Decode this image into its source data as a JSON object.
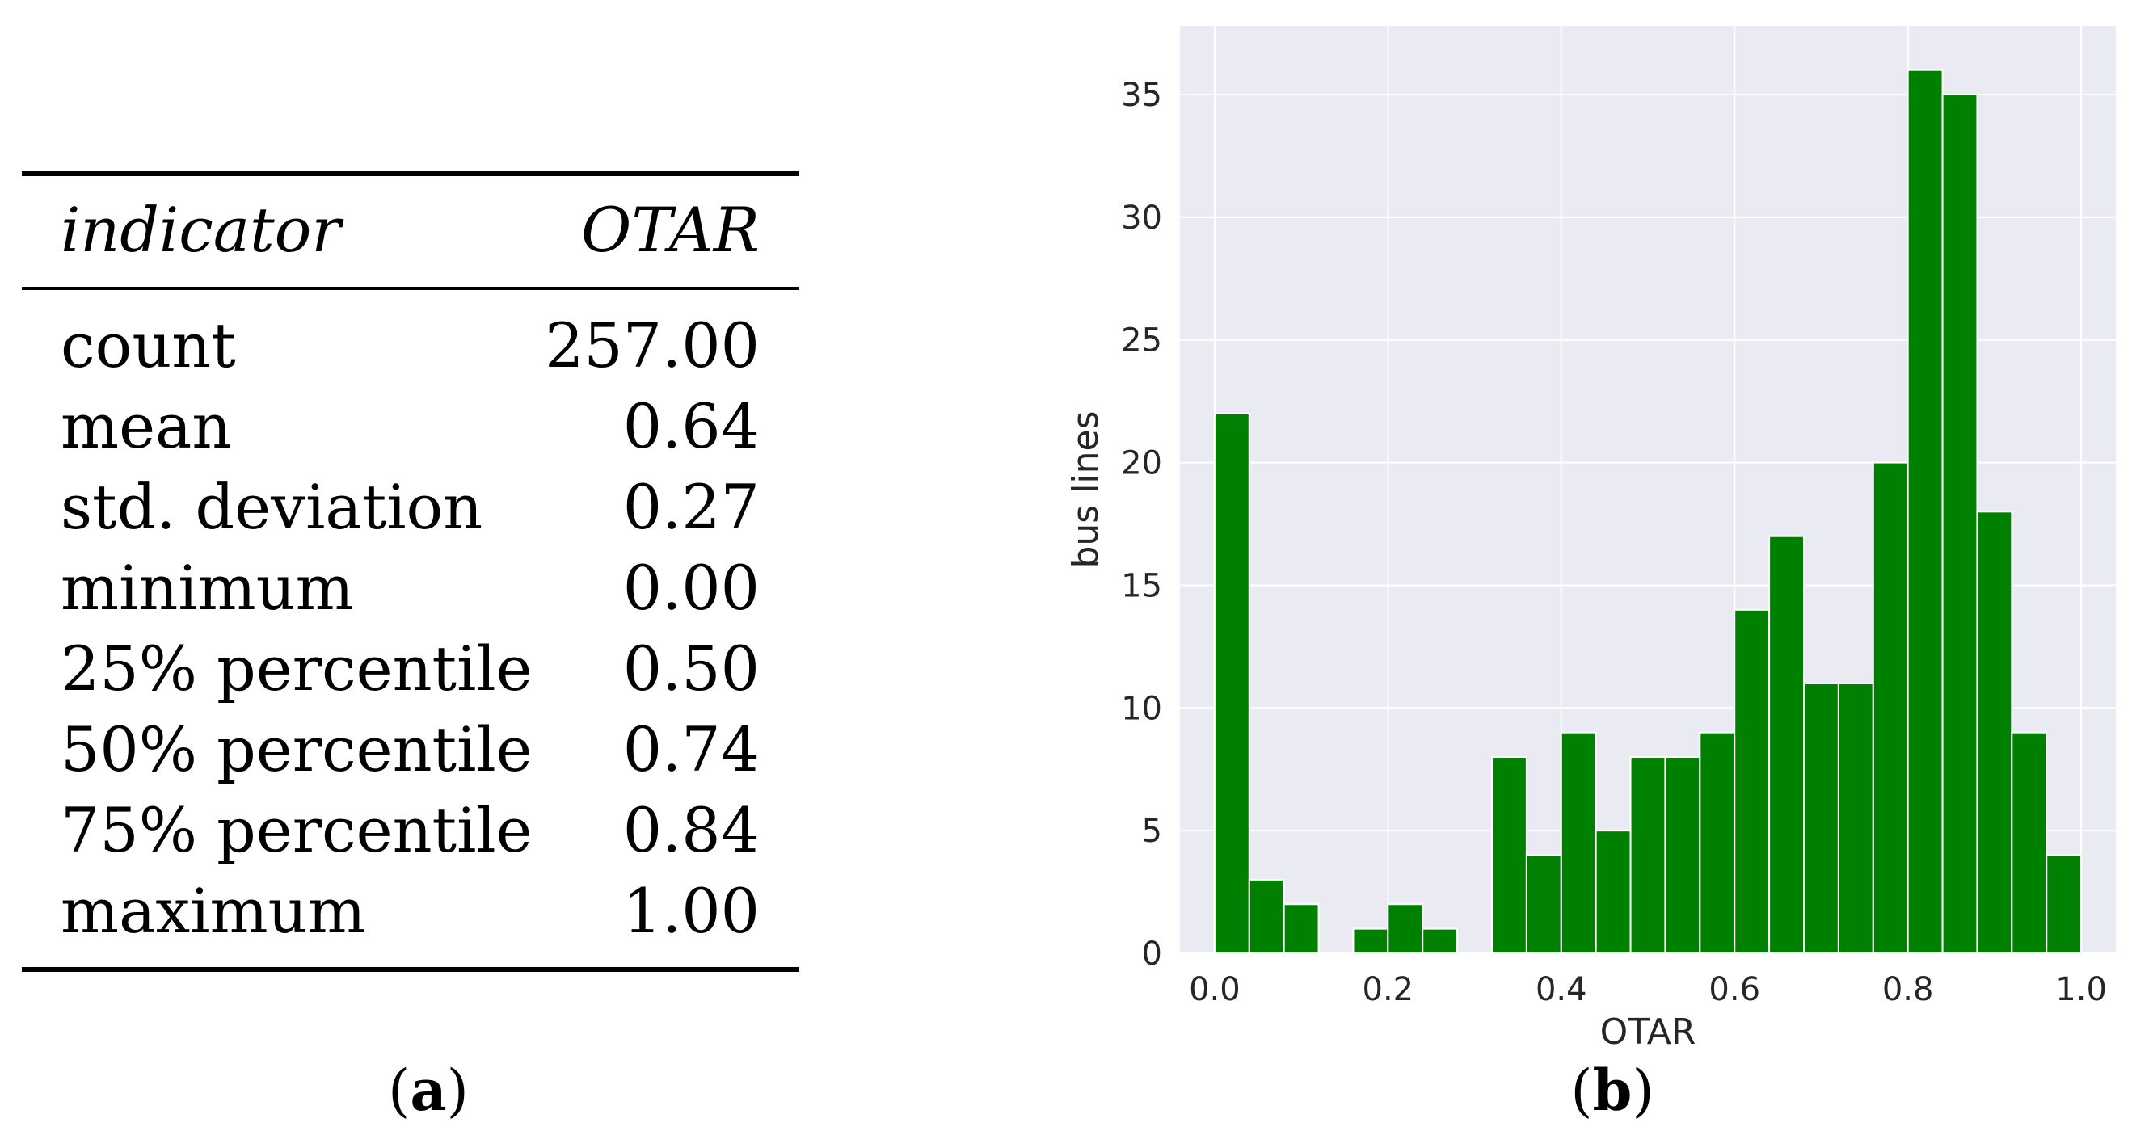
{
  "table": {
    "header": {
      "label": "indicator",
      "value": "OTAR"
    },
    "rows": [
      {
        "label": "count",
        "value": "257.00"
      },
      {
        "label": "mean",
        "value": "0.64"
      },
      {
        "label": "std. deviation",
        "value": "0.27"
      },
      {
        "label": "minimum",
        "value": "0.00"
      },
      {
        "label": "25% percentile",
        "value": "0.50"
      },
      {
        "label": "50% percentile",
        "value": "0.74"
      },
      {
        "label": "75% percentile",
        "value": "0.84"
      },
      {
        "label": "maximum",
        "value": "1.00"
      }
    ]
  },
  "captions": {
    "a": "a",
    "b": "b"
  },
  "colors": {
    "bar": "#008000",
    "plot_bg": "#EAEAF2",
    "grid": "#ffffff"
  },
  "chart_data": {
    "type": "bar",
    "title": "",
    "xlabel": "OTAR",
    "ylabel": "bus lines",
    "xlim": [
      -0.04,
      1.04
    ],
    "ylim": [
      0,
      37.8
    ],
    "grid": true,
    "bin_width": 0.04,
    "bin_starts": [
      0.0,
      0.04,
      0.08,
      0.12,
      0.16,
      0.2,
      0.24,
      0.28,
      0.32,
      0.36,
      0.4,
      0.44,
      0.48,
      0.52,
      0.56,
      0.6,
      0.64,
      0.68,
      0.72,
      0.76,
      0.8,
      0.84,
      0.88,
      0.92,
      0.96
    ],
    "values": [
      22,
      3,
      2,
      0,
      1,
      2,
      1,
      0,
      8,
      4,
      9,
      5,
      8,
      8,
      9,
      14,
      17,
      11,
      11,
      20,
      36,
      35,
      18,
      9,
      4
    ],
    "x_ticks": [
      0.0,
      0.2,
      0.4,
      0.6,
      0.8,
      1.0
    ],
    "x_tick_labels": [
      "0.0",
      "0.2",
      "0.4",
      "0.6",
      "0.8",
      "1.0"
    ],
    "y_ticks": [
      0,
      5,
      10,
      15,
      20,
      25,
      30,
      35
    ],
    "y_tick_labels": [
      "0",
      "5",
      "10",
      "15",
      "20",
      "25",
      "30",
      "35"
    ]
  }
}
